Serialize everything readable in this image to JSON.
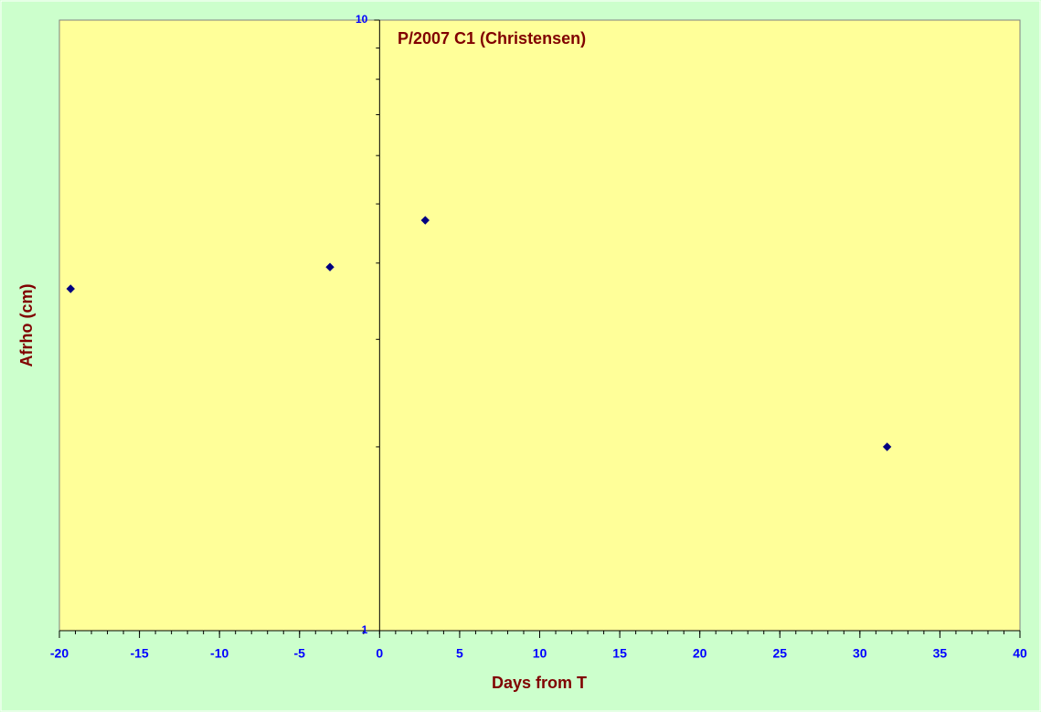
{
  "chart_data": {
    "type": "scatter",
    "title": "P/2007 C1 (Christensen)",
    "x_label": "Days from T",
    "y_label": "Afrho (cm)",
    "x": [
      -19.3,
      -3.1,
      2.85,
      31.7
    ],
    "values": [
      3.63,
      3.94,
      4.7,
      2.0
    ],
    "color": "#000080",
    "log_y": true,
    "xlim": [
      -20,
      40
    ],
    "xticks": [
      -20,
      -15,
      -10,
      -5,
      0,
      5,
      10,
      15,
      20,
      25,
      30,
      35,
      40
    ],
    "xminor_step": 1,
    "ylim": [
      1,
      10
    ],
    "yticks": [
      1,
      10
    ],
    "yminor_ticks": [
      2,
      3,
      4,
      5,
      6,
      7,
      8,
      9
    ]
  }
}
